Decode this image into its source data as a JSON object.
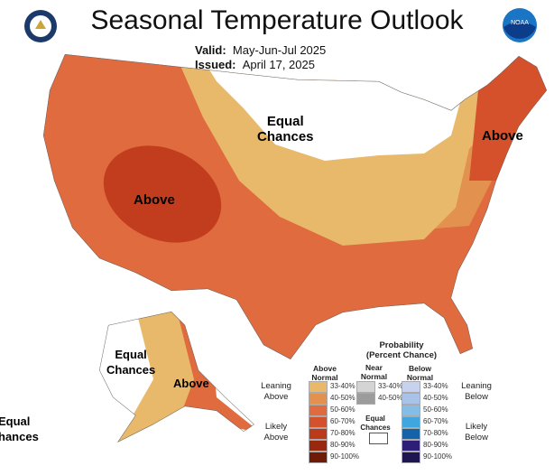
{
  "header": {
    "title": "Seasonal Temperature Outlook",
    "valid_label": "Valid:",
    "valid_value": "May-Jun-Jul 2025",
    "issued_label": "Issued:",
    "issued_value": "April 17, 2025",
    "left_logo": "doc-seal-logo",
    "right_logo": "noaa-logo",
    "noaa_text": "NOAA"
  },
  "map_labels": {
    "equal_chances_conus": "Equal\nChances",
    "above_west": "Above",
    "above_northeast": "Above",
    "alaska_equal": "Equal\nChances",
    "alaska_above": "Above",
    "hawaii_equal_1": "Equal",
    "hawaii_equal_2": "hances"
  },
  "legend": {
    "title_1": "Probability",
    "title_2": "(Percent Chance)",
    "above_header_1": "Above",
    "above_header_2": "Normal",
    "near_header_1": "Near",
    "near_header_2": "Normal",
    "below_header_1": "Below",
    "below_header_2": "Normal",
    "leaning_above_1": "Leaning",
    "leaning_above_2": "Above",
    "likely_above_1": "Likely",
    "likely_above_2": "Above",
    "leaning_below_1": "Leaning",
    "leaning_below_2": "Below",
    "likely_below_1": "Likely",
    "likely_below_2": "Below",
    "equal_1": "Equal",
    "equal_2": "Chances",
    "above": [
      {
        "range": "33-40%",
        "color": "#e9b96b"
      },
      {
        "range": "40-50%",
        "color": "#e2924e"
      },
      {
        "range": "50-60%",
        "color": "#df6b3e"
      },
      {
        "range": "60-70%",
        "color": "#d5512b"
      },
      {
        "range": "70-80%",
        "color": "#bb3a1c"
      },
      {
        "range": "80-90%",
        "color": "#97290f"
      },
      {
        "range": "90-100%",
        "color": "#6e1a06"
      }
    ],
    "near": [
      {
        "range": "33-40%",
        "color": "#d4d4d4"
      },
      {
        "range": "40-50%",
        "color": "#9c9c9c"
      }
    ],
    "below": [
      {
        "range": "33-40%",
        "color": "#c6d2ee"
      },
      {
        "range": "40-50%",
        "color": "#a9c3e8"
      },
      {
        "range": "50-60%",
        "color": "#84bde8"
      },
      {
        "range": "60-70%",
        "color": "#3fa6e0"
      },
      {
        "range": "70-80%",
        "color": "#1463a8"
      },
      {
        "range": "80-90%",
        "color": "#2d1f78"
      },
      {
        "range": "90-100%",
        "color": "#1e1650"
      }
    ]
  }
}
